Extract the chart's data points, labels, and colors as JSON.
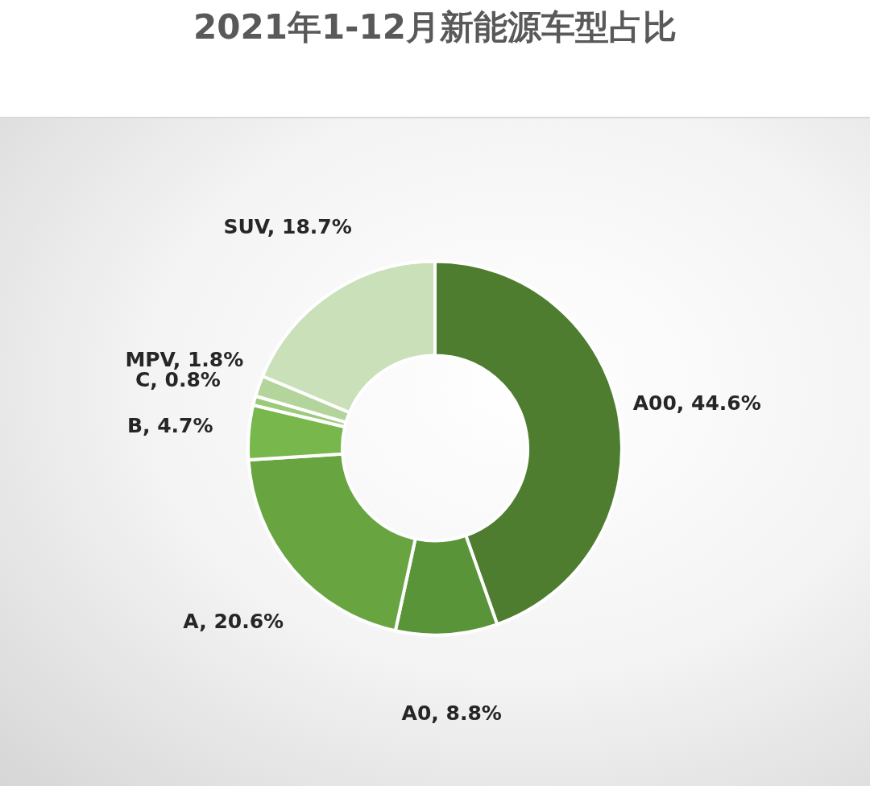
{
  "chart_data": {
    "type": "donut",
    "title": "2021年1-12月新能源车型占比",
    "categories": [
      "A00",
      "A0",
      "A",
      "B",
      "C",
      "MPV",
      "SUV"
    ],
    "values": [
      44.6,
      8.8,
      20.6,
      4.7,
      0.8,
      1.8,
      18.7
    ],
    "colors": [
      "#4e7d2f",
      "#5a9438",
      "#68a540",
      "#77b74c",
      "#9cca7c",
      "#b3d59b",
      "#c9e0b9"
    ],
    "value_labels": [
      "44.6%",
      "8.8%",
      "20.6%",
      "4.7%",
      "0.8%",
      "1.8%",
      "18.7%"
    ],
    "legend": false
  }
}
